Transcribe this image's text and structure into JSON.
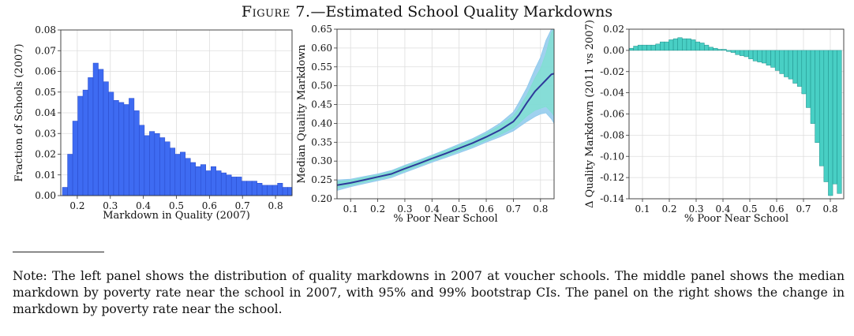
{
  "figure": {
    "title_prefix": "Figure 7.",
    "title_rest": "—Estimated School Quality Markdowns"
  },
  "note": "Note: The left panel shows the distribution of quality markdowns in 2007 at voucher schools. The middle panel shows the median markdown by poverty rate near the school in 2007, with 95% and 99% bootstrap CIs. The panel on the right shows the change in markdown by poverty rate near the school.",
  "colors": {
    "hist_bar": "#3e6bf2",
    "hist_edge": "#2749c9",
    "median_line": "#2e3a9a",
    "ci95": "#7ee0cf",
    "ci99": "#8ec9ec",
    "change_bar": "#48cfc4",
    "change_edge": "#1f8f8a"
  },
  "chart_data": [
    {
      "type": "bar",
      "xlabel": "Markdown in Quality (2007)",
      "ylabel": "Fraction of Schools (2007)",
      "xlim": [
        0.15,
        0.85
      ],
      "ylim": [
        0,
        0.08
      ],
      "xticks": [
        0.2,
        0.3,
        0.4,
        0.5,
        0.6,
        0.7,
        0.8
      ],
      "yticks": [
        0.0,
        0.01,
        0.02,
        0.03,
        0.04,
        0.05,
        0.06,
        0.07,
        0.08
      ],
      "bin_width": 0.0155,
      "bin_start": 0.155,
      "values": [
        0.004,
        0.02,
        0.036,
        0.048,
        0.051,
        0.057,
        0.064,
        0.061,
        0.055,
        0.05,
        0.046,
        0.045,
        0.044,
        0.047,
        0.041,
        0.034,
        0.029,
        0.031,
        0.03,
        0.028,
        0.026,
        0.023,
        0.02,
        0.021,
        0.018,
        0.016,
        0.014,
        0.015,
        0.012,
        0.014,
        0.012,
        0.011,
        0.01,
        0.009,
        0.009,
        0.007,
        0.007,
        0.007,
        0.006,
        0.005,
        0.005,
        0.005,
        0.006,
        0.004,
        0.004,
        0.004,
        0.002,
        0.003,
        0.002,
        0.002,
        0.002,
        0.003,
        0.003,
        0.002,
        0.002,
        0.003,
        0.002,
        0.002,
        0.002,
        0.001
      ]
    },
    {
      "type": "line",
      "xlabel": "% Poor Near School",
      "ylabel": "Median Quality Markdown",
      "xlim": [
        0.05,
        0.85
      ],
      "ylim": [
        0.2,
        0.65
      ],
      "xticks": [
        0.1,
        0.2,
        0.3,
        0.4,
        0.5,
        0.6,
        0.7,
        0.8
      ],
      "yticks": [
        0.2,
        0.25,
        0.3,
        0.35,
        0.4,
        0.45,
        0.5,
        0.55,
        0.6,
        0.65
      ],
      "x": [
        0.05,
        0.1,
        0.15,
        0.2,
        0.25,
        0.3,
        0.35,
        0.4,
        0.45,
        0.5,
        0.55,
        0.6,
        0.65,
        0.7,
        0.72,
        0.75,
        0.78,
        0.8,
        0.82,
        0.84,
        0.85
      ],
      "median": [
        0.236,
        0.242,
        0.25,
        0.258,
        0.266,
        0.28,
        0.293,
        0.307,
        0.32,
        0.334,
        0.348,
        0.364,
        0.382,
        0.405,
        0.422,
        0.455,
        0.485,
        0.5,
        0.515,
        0.53,
        0.532
      ],
      "ci95_upper": [
        0.245,
        0.249,
        0.256,
        0.263,
        0.272,
        0.286,
        0.299,
        0.313,
        0.327,
        0.341,
        0.356,
        0.373,
        0.394,
        0.42,
        0.44,
        0.475,
        0.52,
        0.545,
        0.585,
        0.64,
        0.65
      ],
      "ci95_lower": [
        0.228,
        0.236,
        0.244,
        0.252,
        0.26,
        0.274,
        0.287,
        0.301,
        0.313,
        0.327,
        0.34,
        0.355,
        0.37,
        0.388,
        0.4,
        0.42,
        0.435,
        0.44,
        0.445,
        0.43,
        0.42
      ],
      "ci99_upper": [
        0.25,
        0.252,
        0.259,
        0.266,
        0.275,
        0.289,
        0.302,
        0.316,
        0.33,
        0.345,
        0.36,
        0.378,
        0.4,
        0.43,
        0.455,
        0.495,
        0.545,
        0.575,
        0.62,
        0.65,
        0.65
      ],
      "ci99_lower": [
        0.222,
        0.232,
        0.24,
        0.248,
        0.256,
        0.27,
        0.283,
        0.297,
        0.309,
        0.322,
        0.335,
        0.35,
        0.364,
        0.38,
        0.39,
        0.405,
        0.418,
        0.425,
        0.428,
        0.412,
        0.4
      ]
    },
    {
      "type": "bar",
      "xlabel": "% Poor Near School",
      "ylabel": "Δ Quality Markdown (2011 vs 2007)",
      "xlim": [
        0.05,
        0.85
      ],
      "ylim": [
        -0.14,
        0.02
      ],
      "xticks": [
        0.1,
        0.2,
        0.3,
        0.4,
        0.5,
        0.6,
        0.7,
        0.8
      ],
      "yticks": [
        0.02,
        0.0,
        -0.02,
        -0.04,
        -0.06,
        -0.08,
        -0.1,
        -0.12,
        -0.14
      ],
      "ytick_labels": [
        "0.02",
        "0.00",
        "-0.02",
        "-0.04",
        "-0.06",
        "-0.08",
        "-0.10",
        "-0.12",
        "-0.14"
      ],
      "bin_width": 0.0165,
      "bin_start": 0.05,
      "values": [
        0.002,
        0.004,
        0.005,
        0.005,
        0.005,
        0.005,
        0.006,
        0.008,
        0.008,
        0.01,
        0.011,
        0.012,
        0.011,
        0.011,
        0.01,
        0.008,
        0.007,
        0.005,
        0.003,
        0.002,
        0.001,
        0.001,
        -0.001,
        -0.002,
        -0.004,
        -0.005,
        -0.006,
        -0.008,
        -0.01,
        -0.011,
        -0.012,
        -0.014,
        -0.016,
        -0.019,
        -0.022,
        -0.025,
        -0.027,
        -0.031,
        -0.034,
        -0.041,
        -0.054,
        -0.069,
        -0.087,
        -0.109,
        -0.124,
        -0.137,
        -0.126,
        -0.135
      ]
    }
  ]
}
